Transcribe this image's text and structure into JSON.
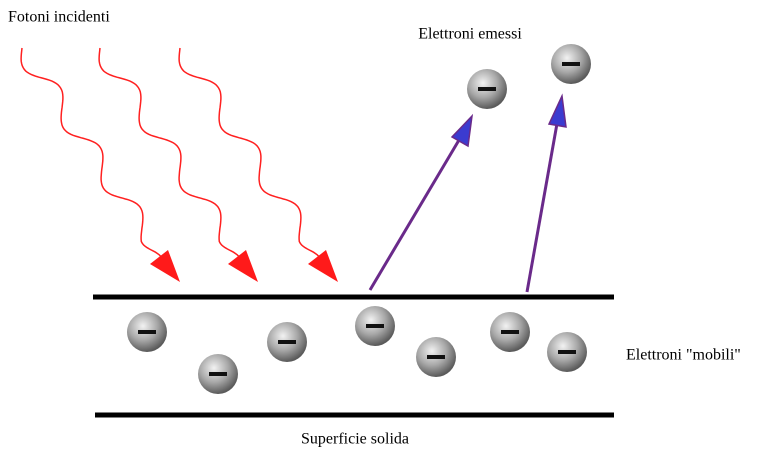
{
  "labels": {
    "photons": "Fotoni incidenti",
    "emitted": "Elettroni emessi",
    "mobile": "Elettroni \"mobili\"",
    "surface": "Superficie solida"
  }
}
